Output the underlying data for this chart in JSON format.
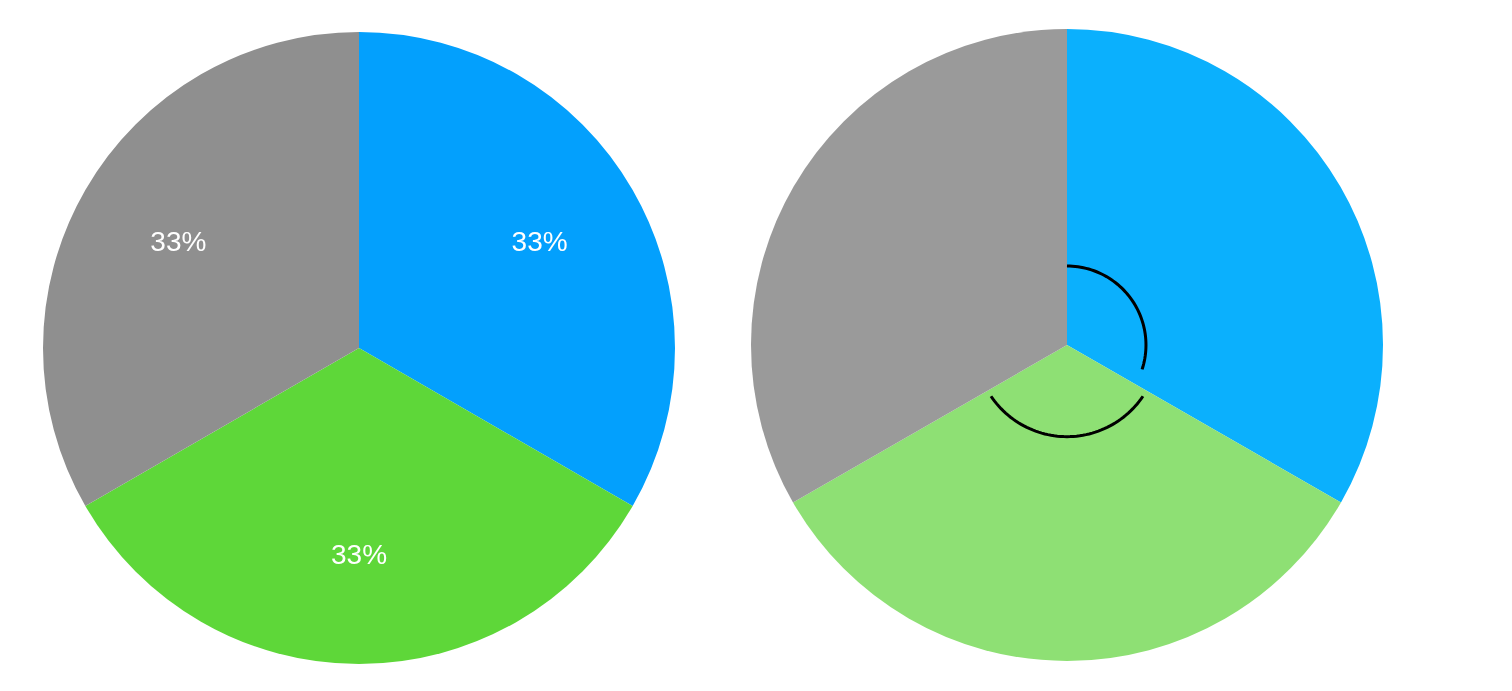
{
  "chart_data": [
    {
      "type": "pie",
      "categories": [
        null,
        null,
        null
      ],
      "values": [
        33,
        33,
        33
      ],
      "colors": [
        "#03a0fd",
        "#5ed739",
        "#8f8f8f"
      ],
      "value_labels": [
        "33%",
        "33%",
        "33%"
      ]
    },
    {
      "type": "pie",
      "categories": [
        null,
        null,
        null
      ],
      "values": [
        33.3,
        33.4,
        33.3
      ],
      "colors": [
        "#0bb0fd",
        "#8ee074",
        "#9a9a9a"
      ]
    }
  ]
}
